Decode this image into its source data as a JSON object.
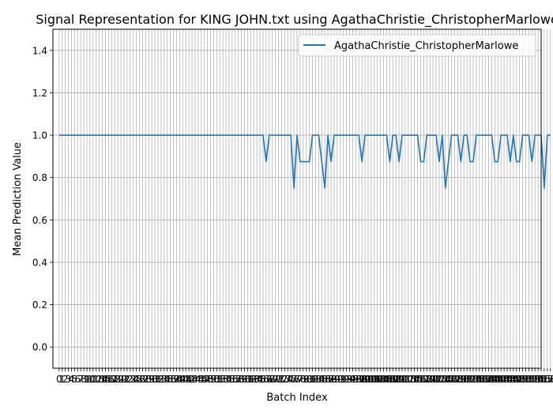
{
  "chart_data": {
    "type": "line",
    "title": "Signal Representation for KING JOHN.txt using AgathaChristie_ChristopherMarlowe",
    "xlabel": "Batch Index",
    "ylabel": "Mean Prediction Value",
    "xlim": [
      -2,
      156
    ],
    "ylim": [
      -0.1,
      1.5
    ],
    "yticks": [
      0.0,
      0.2,
      0.4,
      0.6,
      0.8,
      1.0,
      1.2,
      1.4
    ],
    "grid": true,
    "legend_position": "top-right",
    "series_color": "#1f77b4",
    "series": [
      {
        "name": "AgathaChristie_ChristopherMarlowe",
        "values": [
          1,
          1,
          1,
          1,
          1,
          1,
          1,
          1,
          1,
          1,
          1,
          1,
          1,
          1,
          1,
          1,
          1,
          1,
          1,
          1,
          1,
          1,
          1,
          1,
          1,
          1,
          1,
          1,
          1,
          1,
          1,
          1,
          1,
          1,
          1,
          1,
          1,
          1,
          1,
          1,
          1,
          1,
          1,
          1,
          1,
          1,
          1,
          1,
          1,
          1,
          1,
          1,
          1,
          1,
          1,
          1,
          1,
          1,
          1,
          1,
          1,
          1,
          1,
          1,
          1,
          1,
          1,
          0.875,
          1,
          1,
          1,
          1,
          1,
          1,
          1,
          1,
          0.75,
          1,
          0.875,
          0.875,
          0.875,
          0.875,
          1,
          1,
          1,
          0.875,
          0.75,
          1,
          0.875,
          1,
          1,
          1,
          1,
          1,
          1,
          1,
          1,
          1,
          0.875,
          1,
          1,
          1,
          1,
          1,
          1,
          1,
          1,
          0.875,
          1,
          1,
          0.875,
          1,
          1,
          1,
          1,
          1,
          1,
          0.875,
          0.875,
          1,
          1,
          1,
          1,
          0.875,
          1,
          0.75,
          0.875,
          1,
          1,
          1,
          0.875,
          1,
          1,
          0.875,
          0.875,
          1,
          1,
          1,
          1,
          1,
          1,
          0.875,
          0.875,
          1,
          1,
          1,
          0.875,
          1,
          0.875,
          0.875,
          1,
          1,
          1,
          0.875,
          1,
          1,
          1,
          0.75,
          1,
          1
        ]
      }
    ]
  }
}
